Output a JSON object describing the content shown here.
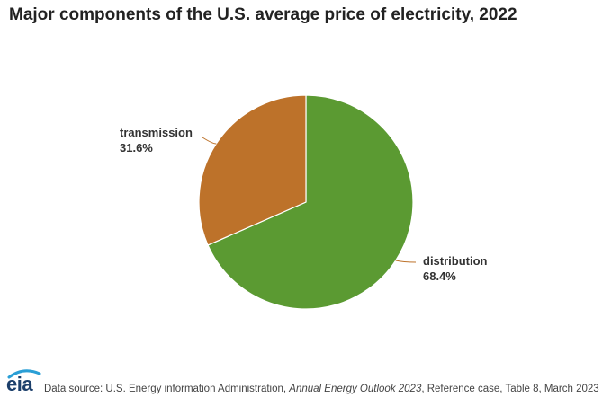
{
  "chart_data": {
    "type": "pie",
    "title": "Major components of the U.S. average price of electricity, 2022",
    "slices": [
      {
        "label": "distribution",
        "value": 68.4,
        "display": "68.4%",
        "color": "#5b9a32"
      },
      {
        "label": "transmission",
        "value": 31.6,
        "display": "31.6%",
        "color": "#bd722a"
      }
    ],
    "start_angle_deg": 0,
    "direction": "clockwise",
    "slice_border_color": "#ffffff",
    "leader_color": "#bd722a"
  },
  "footer": {
    "logo_text": "eia",
    "logo_colors": {
      "text": "#1c3f6b",
      "arc": "#2a9fd6"
    },
    "source_prefix": "Data source: U.S. Energy information Administration, ",
    "source_publication": "Annual Energy Outlook 2023",
    "source_suffix": ", Reference case, Table 8, March 2023"
  }
}
